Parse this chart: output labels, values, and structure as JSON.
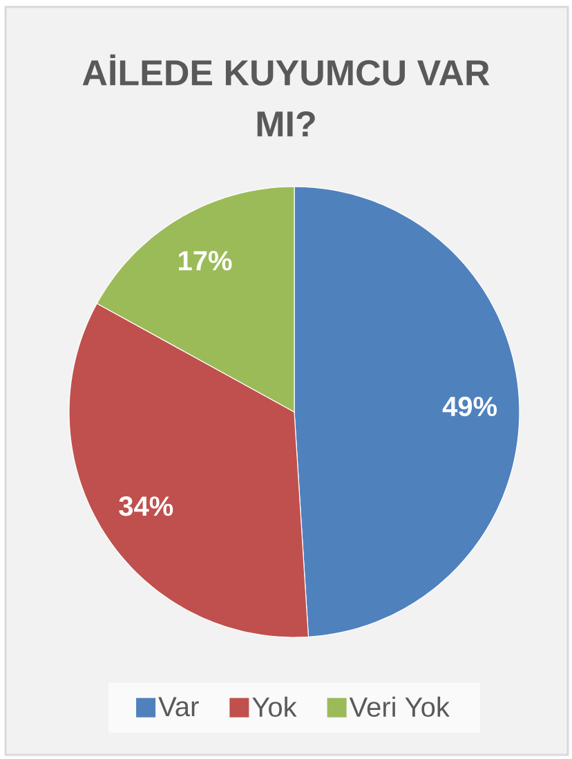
{
  "chart_data": {
    "type": "pie",
    "title": "AİLEDE KUYUMCU VAR MI?",
    "categories": [
      "Var",
      "Yok",
      "Veri Yok"
    ],
    "values": [
      49,
      34,
      17
    ],
    "colors": [
      "#4f81bd",
      "#c0504d",
      "#9bbb59"
    ],
    "value_labels": [
      "49%",
      "34%",
      "17%"
    ],
    "legend": "bottom"
  }
}
